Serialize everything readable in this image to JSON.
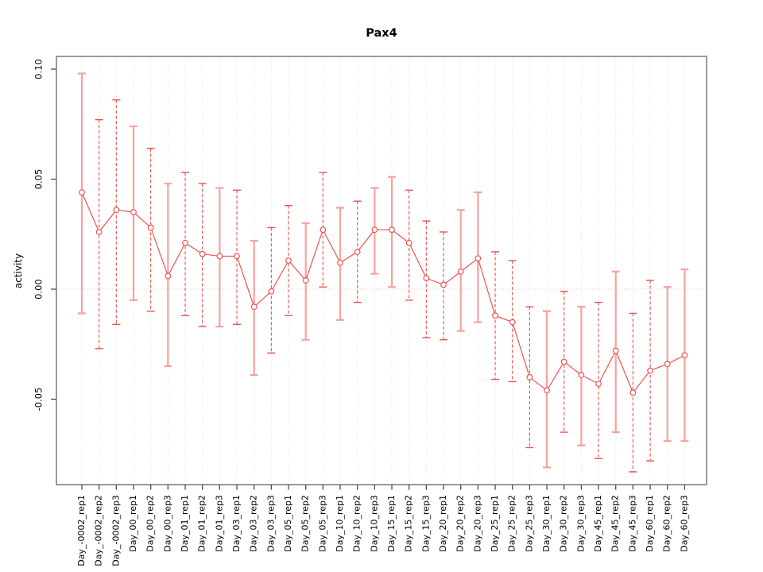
{
  "title": "Pax4",
  "chart_data": {
    "type": "scatter",
    "title": "Pax4",
    "xlabel": "",
    "ylabel": "activity",
    "ylim": [
      -0.089,
      0.106
    ],
    "yticks": [
      0.1,
      0.05,
      0.0,
      -0.05
    ],
    "ytick_labels": [
      "0.10",
      "0.05",
      "0.00",
      "-0.05"
    ],
    "grid": "vertical dotted gridline at every category",
    "zero_line": true,
    "legend": "none",
    "categories": [
      "Day_-0002_rep1",
      "Day_-0002_rep2",
      "Day_-0002_rep3",
      "Day_00_rep1",
      "Day_00_rep2",
      "Day_00_rep3",
      "Day_01_rep1",
      "Day_01_rep2",
      "Day_01_rep3",
      "Day_03_rep1",
      "Day_03_rep2",
      "Day_03_rep3",
      "Day_05_rep1",
      "Day_05_rep2",
      "Day_05_rep3",
      "Day_10_rep1",
      "Day_10_rep2",
      "Day_10_rep3",
      "Day_15_rep1",
      "Day_15_rep2",
      "Day_15_rep3",
      "Day_20_rep1",
      "Day_20_rep2",
      "Day_20_rep3",
      "Day_25_rep1",
      "Day_25_rep2",
      "Day_25_rep3",
      "Day_30_rep1",
      "Day_30_rep2",
      "Day_30_rep3",
      "Day_45_rep1",
      "Day_45_rep2",
      "Day_45_rep3",
      "Day_60_rep1",
      "Day_60_rep2",
      "Day_60_rep3"
    ],
    "series": [
      {
        "name": "activity",
        "marker": "open-circle",
        "connected": true,
        "values": [
          0.044,
          0.026,
          0.036,
          0.035,
          0.028,
          0.006,
          0.021,
          0.016,
          0.015,
          0.015,
          -0.008,
          -0.001,
          0.013,
          0.004,
          0.027,
          0.012,
          0.017,
          0.027,
          0.027,
          0.021,
          0.005,
          0.002,
          0.008,
          0.014,
          -0.012,
          -0.015,
          -0.04,
          -0.046,
          -0.033,
          -0.039,
          -0.043,
          -0.028,
          -0.047,
          -0.037,
          -0.034,
          -0.03
        ],
        "ci_low": [
          -0.011,
          -0.027,
          -0.016,
          -0.005,
          -0.01,
          -0.035,
          -0.012,
          -0.017,
          -0.017,
          -0.016,
          -0.039,
          -0.029,
          -0.012,
          -0.023,
          0.001,
          -0.014,
          -0.006,
          0.007,
          0.001,
          -0.005,
          -0.022,
          -0.023,
          -0.019,
          -0.015,
          -0.041,
          -0.042,
          -0.072,
          -0.081,
          -0.065,
          -0.071,
          -0.077,
          -0.065,
          -0.083,
          -0.078,
          -0.069,
          -0.069
        ],
        "ci_high": [
          0.098,
          0.077,
          0.086,
          0.074,
          0.064,
          0.048,
          0.053,
          0.048,
          0.046,
          0.045,
          0.022,
          0.028,
          0.038,
          0.03,
          0.053,
          0.037,
          0.04,
          0.046,
          0.051,
          0.045,
          0.031,
          0.026,
          0.036,
          0.044,
          0.017,
          0.013,
          -0.008,
          -0.01,
          -0.001,
          -0.008,
          -0.006,
          0.008,
          -0.011,
          0.004,
          0.001,
          0.009
        ],
        "bar_styles": [
          "solid",
          "dashed",
          "dashed",
          "solid",
          "dashed",
          "solid",
          "dashed",
          "dashed",
          "solid",
          "dashed",
          "solid",
          "dashed",
          "dashed",
          "solid",
          "dashed",
          "solid",
          "dashed",
          "solid",
          "solid",
          "dashed",
          "dashed",
          "dashed",
          "solid",
          "solid",
          "dashed",
          "dashed",
          "dashed",
          "solid",
          "dashed",
          "solid",
          "dashed",
          "solid",
          "dashed",
          "dashed",
          "solid",
          "solid"
        ]
      }
    ],
    "colors": {
      "point": "#ee544d",
      "connect_line": "#ee544d",
      "bar_solid": "#f7a29d",
      "bar_dashed": "#e8524a",
      "zero_line": "#f2bcb9",
      "gridline": "#dedede",
      "box": "#8f8f8f",
      "tick": "#4d4d4d",
      "text": "#000000"
    }
  }
}
